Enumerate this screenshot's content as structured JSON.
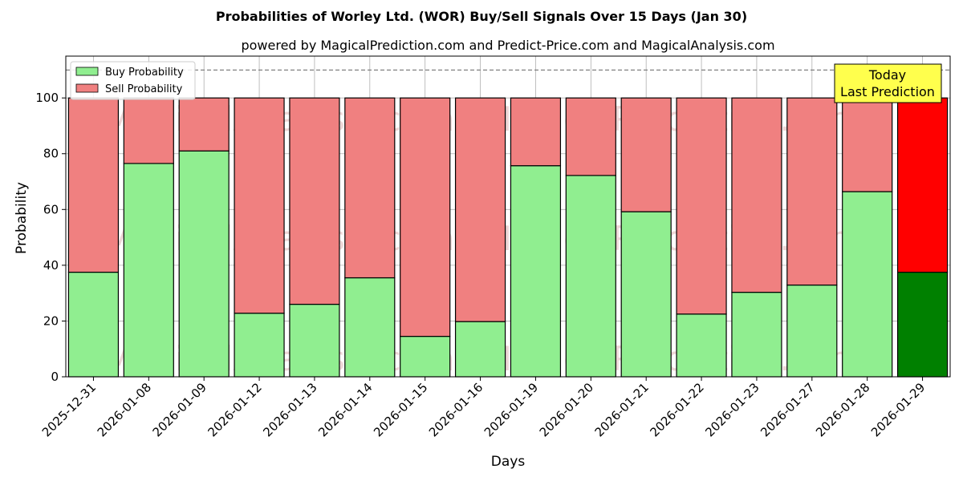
{
  "chart_data": {
    "type": "bar",
    "stacked": true,
    "title": "Probabilities of Worley Ltd. (WOR) Buy/Sell Signals Over 15 Days (Jan 30)",
    "subtitle": "powered by MagicalPrediction.com and Predict-Price.com and MagicalAnalysis.com",
    "xlabel": "Days",
    "ylabel": "Probability",
    "ylim": [
      0,
      115
    ],
    "yticks": [
      0,
      20,
      40,
      60,
      80,
      100
    ],
    "grid": true,
    "legend_position": "top-left",
    "reference_line": 110,
    "categories": [
      "2025-12-31",
      "2026-01-08",
      "2026-01-09",
      "2026-01-12",
      "2026-01-13",
      "2026-01-14",
      "2026-01-15",
      "2026-01-16",
      "2026-01-19",
      "2026-01-20",
      "2026-01-21",
      "2026-01-22",
      "2026-01-23",
      "2026-01-27",
      "2026-01-28",
      "2026-01-29"
    ],
    "series": [
      {
        "name": "Buy Probability",
        "color": "#90ee90",
        "highlight_color": "#008000",
        "values": [
          37.5,
          76.5,
          81,
          22.8,
          26,
          35.5,
          14.5,
          19.8,
          75.7,
          72.2,
          59.2,
          22.5,
          30.3,
          32.9,
          66.4,
          37.5
        ]
      },
      {
        "name": "Sell Probability",
        "color": "#f08080",
        "highlight_color": "#ff0000",
        "values": [
          62.5,
          23.5,
          19,
          77.2,
          74,
          64.5,
          85.5,
          80.2,
          24.3,
          27.8,
          40.8,
          77.5,
          69.7,
          67.1,
          33.6,
          62.5
        ]
      }
    ],
    "highlight_index": 15,
    "annotation": {
      "line1": "Today",
      "line2": "Last Prediction",
      "background": "#ffff4d"
    },
    "watermarks": [
      "MagicalAnalysis.com",
      "MagicalPrediction.com"
    ]
  }
}
